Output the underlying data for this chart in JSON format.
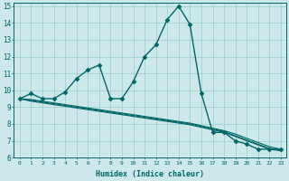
{
  "xlabel": "Humidex (Indice chaleur)",
  "ylabel": "",
  "xlim": [
    -0.5,
    23.5
  ],
  "ylim": [
    6,
    15.2
  ],
  "yticks": [
    6,
    7,
    8,
    9,
    10,
    11,
    12,
    13,
    14,
    15
  ],
  "xticks": [
    0,
    1,
    2,
    3,
    4,
    5,
    6,
    7,
    8,
    9,
    10,
    11,
    12,
    13,
    14,
    15,
    16,
    17,
    18,
    19,
    20,
    21,
    22,
    23
  ],
  "bg_color": "#cce8e8",
  "grid_color": "#99cccc",
  "line_color": "#006666",
  "lines": [
    {
      "x": [
        0,
        1,
        2,
        3,
        4,
        5,
        6,
        7,
        8,
        9,
        10,
        11,
        12,
        13,
        14,
        15,
        16,
        17,
        18,
        19,
        20,
        21,
        22,
        23
      ],
      "y": [
        9.5,
        9.8,
        9.5,
        9.5,
        9.9,
        10.7,
        11.2,
        11.5,
        9.5,
        9.5,
        10.5,
        12.0,
        12.7,
        14.2,
        15.0,
        13.9,
        9.8,
        7.5,
        7.5,
        7.0,
        6.8,
        6.5,
        6.5,
        6.5
      ],
      "marker": "D",
      "markersize": 2.5,
      "linewidth": 1.0,
      "has_marker": true
    },
    {
      "x": [
        0,
        1,
        2,
        3,
        4,
        5,
        6,
        7,
        8,
        9,
        10,
        11,
        12,
        13,
        14,
        15,
        16,
        17,
        18,
        19,
        20,
        21,
        22,
        23
      ],
      "y": [
        9.5,
        9.45,
        9.35,
        9.25,
        9.15,
        9.05,
        8.95,
        8.85,
        8.75,
        8.65,
        8.55,
        8.45,
        8.35,
        8.25,
        8.15,
        8.05,
        7.9,
        7.75,
        7.6,
        7.4,
        7.15,
        6.9,
        6.65,
        6.5
      ],
      "marker": null,
      "markersize": 0,
      "linewidth": 0.8,
      "has_marker": false
    },
    {
      "x": [
        0,
        1,
        2,
        3,
        4,
        5,
        6,
        7,
        8,
        9,
        10,
        11,
        12,
        13,
        14,
        15,
        16,
        17,
        18,
        19,
        20,
        21,
        22,
        23
      ],
      "y": [
        9.5,
        9.4,
        9.3,
        9.2,
        9.1,
        9.0,
        8.9,
        8.8,
        8.7,
        8.6,
        8.5,
        8.4,
        8.3,
        8.2,
        8.1,
        8.0,
        7.85,
        7.7,
        7.55,
        7.3,
        7.05,
        6.8,
        6.55,
        6.45
      ],
      "marker": null,
      "markersize": 0,
      "linewidth": 0.8,
      "has_marker": false
    },
    {
      "x": [
        0,
        1,
        2,
        3,
        4,
        5,
        6,
        7,
        8,
        9,
        10,
        11,
        12,
        13,
        14,
        15,
        16,
        17,
        18,
        19,
        20,
        21,
        22,
        23
      ],
      "y": [
        9.5,
        9.35,
        9.25,
        9.15,
        9.05,
        8.95,
        8.85,
        8.75,
        8.65,
        8.55,
        8.45,
        8.35,
        8.25,
        8.15,
        8.05,
        7.95,
        7.8,
        7.65,
        7.5,
        7.25,
        7.0,
        6.75,
        6.5,
        6.4
      ],
      "marker": null,
      "markersize": 0,
      "linewidth": 0.8,
      "has_marker": false
    }
  ]
}
